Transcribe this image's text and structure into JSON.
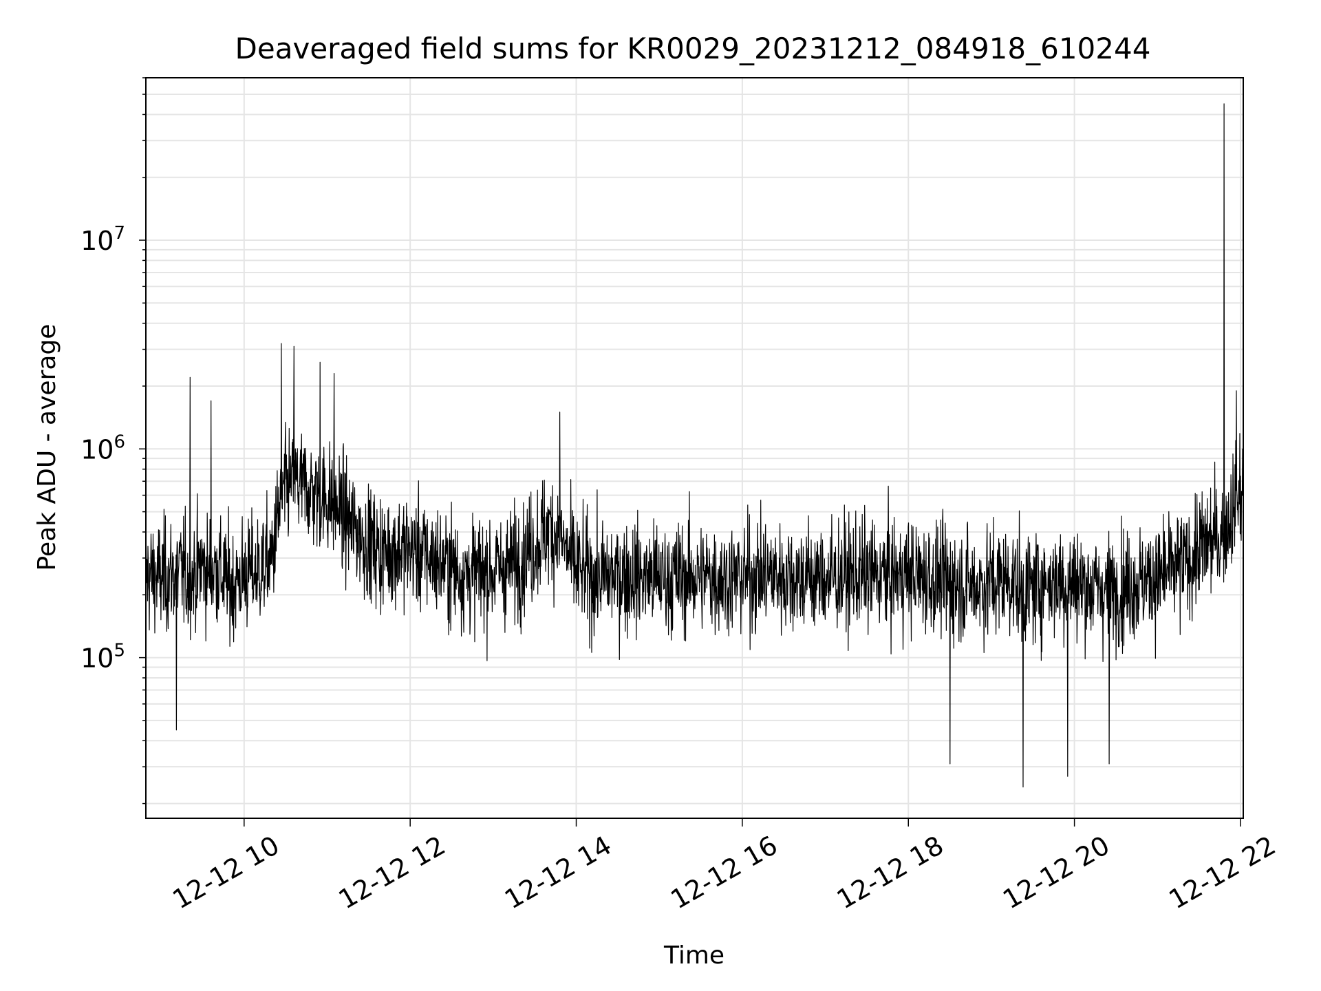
{
  "chart_data": {
    "type": "line",
    "title": "Deaveraged field sums for KR0029_20231212_084918_610244",
    "xlabel": "Time",
    "ylabel": "Peak ADU - average",
    "y_scale": "log",
    "ylim": [
      17000,
      60000000
    ],
    "xlim": [
      "2023-12-12 08:49",
      "2023-12-12 22:02"
    ],
    "x_ticks": [
      {
        "label": "12-12 10",
        "value": "2023-12-12 10:00"
      },
      {
        "label": "12-12 12",
        "value": "2023-12-12 12:00"
      },
      {
        "label": "12-12 14",
        "value": "2023-12-12 14:00"
      },
      {
        "label": "12-12 16",
        "value": "2023-12-12 16:00"
      },
      {
        "label": "12-12 18",
        "value": "2023-12-12 18:00"
      },
      {
        "label": "12-12 20",
        "value": "2023-12-12 20:00"
      },
      {
        "label": "12-12 22",
        "value": "2023-12-12 22:00"
      }
    ],
    "y_ticks": [
      {
        "base": "10",
        "exp": "5",
        "value": 100000
      },
      {
        "base": "10",
        "exp": "6",
        "value": 1000000
      },
      {
        "base": "10",
        "exp": "7",
        "value": 10000000
      }
    ],
    "grid": true,
    "line_color": "#000000",
    "grid_color": "#e5e5e5",
    "series": [
      {
        "x": [
          "2023-12-12 08:49",
          "2023-12-12 09:00",
          "2023-12-12 09:15",
          "2023-12-12 09:20",
          "2023-12-12 09:30",
          "2023-12-12 09:35",
          "2023-12-12 09:40",
          "2023-12-12 09:50",
          "2023-12-12 10:00",
          "2023-12-12 10:10",
          "2023-12-12 10:20",
          "2023-12-12 10:27",
          "2023-12-12 10:35",
          "2023-12-12 10:45",
          "2023-12-12 10:55",
          "2023-12-12 11:05",
          "2023-12-12 11:15",
          "2023-12-12 11:25",
          "2023-12-12 11:30",
          "2023-12-12 11:40",
          "2023-12-12 11:50",
          "2023-12-12 12:00",
          "2023-12-12 12:15",
          "2023-12-12 12:25",
          "2023-12-12 12:40",
          "2023-12-12 13:00",
          "2023-12-12 13:15",
          "2023-12-12 13:30",
          "2023-12-12 13:40",
          "2023-12-12 13:48",
          "2023-12-12 14:00",
          "2023-12-12 14:15",
          "2023-12-12 14:30",
          "2023-12-12 15:00",
          "2023-12-12 15:30",
          "2023-12-12 15:55",
          "2023-12-12 16:15",
          "2023-12-12 16:40",
          "2023-12-12 17:00",
          "2023-12-12 17:30",
          "2023-12-12 17:45",
          "2023-12-12 18:00",
          "2023-12-12 18:15",
          "2023-12-12 18:30",
          "2023-12-12 18:45",
          "2023-12-12 19:00",
          "2023-12-12 19:15",
          "2023-12-12 19:22",
          "2023-12-12 19:40",
          "2023-12-12 19:55",
          "2023-12-12 20:10",
          "2023-12-12 20:25",
          "2023-12-12 20:40",
          "2023-12-12 21:00",
          "2023-12-12 21:20",
          "2023-12-12 21:35",
          "2023-12-12 21:45",
          "2023-12-12 21:49",
          "2023-12-12 21:55",
          "2023-12-12 22:02"
        ],
        "y": [
          250000,
          240000,
          260000,
          230000,
          280000,
          250000,
          270000,
          220000,
          250000,
          260000,
          300000,
          600000,
          700000,
          650000,
          600000,
          550000,
          450000,
          380000,
          350000,
          320000,
          330000,
          330000,
          300000,
          280000,
          250000,
          260000,
          280000,
          350000,
          420000,
          380000,
          260000,
          240000,
          250000,
          240000,
          245000,
          240000,
          250000,
          245000,
          240000,
          250000,
          245000,
          250000,
          240000,
          230000,
          220000,
          230000,
          240000,
          200000,
          235000,
          230000,
          220000,
          210000,
          225000,
          240000,
          280000,
          350000,
          380000,
          420000,
          520000,
          650000
        ]
      }
    ],
    "spikes": [
      {
        "x": "2023-12-12 09:21",
        "y": 2200000
      },
      {
        "x": "2023-12-12 09:36",
        "y": 1700000
      },
      {
        "x": "2023-12-12 10:27",
        "y": 3200000
      },
      {
        "x": "2023-12-12 10:36",
        "y": 3100000
      },
      {
        "x": "2023-12-12 10:55",
        "y": 2600000
      },
      {
        "x": "2023-12-12 11:05",
        "y": 2300000
      },
      {
        "x": "2023-12-12 13:48",
        "y": 1500000
      },
      {
        "x": "2023-12-12 21:48",
        "y": 45000000
      },
      {
        "x": "2023-12-12 21:57",
        "y": 1900000
      },
      {
        "x": "2023-12-12 09:11",
        "y": 45000
      },
      {
        "x": "2023-12-12 18:30",
        "y": 31000
      },
      {
        "x": "2023-12-12 19:23",
        "y": 24000
      },
      {
        "x": "2023-12-12 19:55",
        "y": 27000
      },
      {
        "x": "2023-12-12 20:25",
        "y": 31000
      }
    ]
  }
}
